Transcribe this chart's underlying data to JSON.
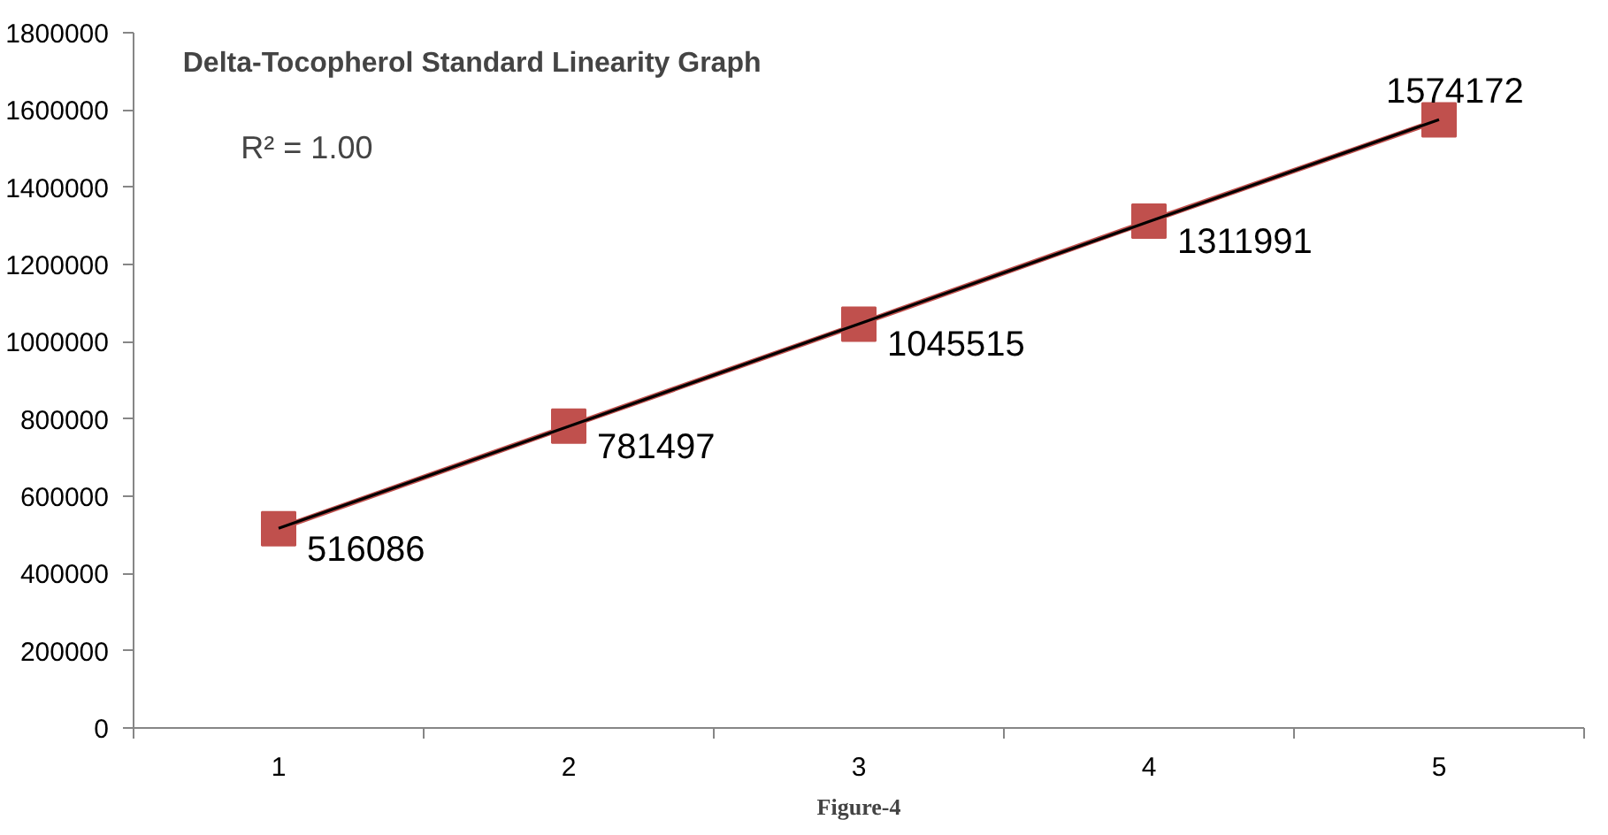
{
  "chart_data": {
    "type": "line",
    "title": "Delta-Tocopherol Standard Linearity Graph",
    "categories": [
      "1",
      "2",
      "3",
      "4",
      "5"
    ],
    "series": [
      {
        "color": "#c0504d",
        "values": [
          516086,
          781497,
          1045515,
          1311991,
          1574172
        ],
        "marker": "square",
        "value_labels": [
          "516086",
          "781497",
          "1045515",
          "1311991",
          "1574172"
        ]
      },
      {
        "type": "line",
        "color": "#000000",
        "values": [
          517000,
          781000,
          1046000,
          1311000,
          1575000
        ],
        "marker": "none"
      }
    ],
    "ylim": [
      0,
      1800000
    ],
    "yticks": [
      0,
      200000,
      400000,
      600000,
      800000,
      1000000,
      1200000,
      1400000,
      1600000,
      1800000
    ],
    "grid": false,
    "annotations": [
      "R² = 1.00",
      "Figure-4"
    ]
  }
}
